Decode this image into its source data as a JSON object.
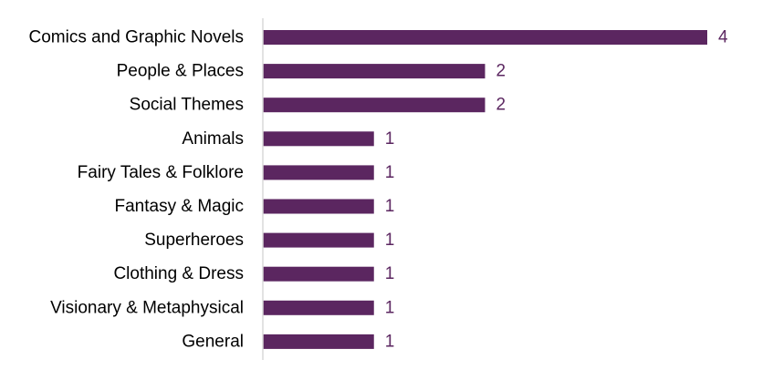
{
  "chart_data": {
    "type": "bar",
    "orientation": "horizontal",
    "categories": [
      "Comics and Graphic Novels",
      "People & Places",
      "Social Themes",
      "Animals",
      "Fairy Tales & Folklore",
      "Fantasy & Magic",
      "Superheroes",
      "Clothing & Dress",
      "Visionary & Metaphysical",
      "General"
    ],
    "values": [
      4,
      2,
      2,
      1,
      1,
      1,
      1,
      1,
      1,
      1
    ],
    "title": "",
    "xlabel": "",
    "ylabel": "",
    "xlim": [
      0,
      4
    ],
    "grid": false,
    "legend": "none",
    "data_labels": true,
    "bar_color": "#5B2660",
    "axis_color": "#D9D9D9"
  }
}
